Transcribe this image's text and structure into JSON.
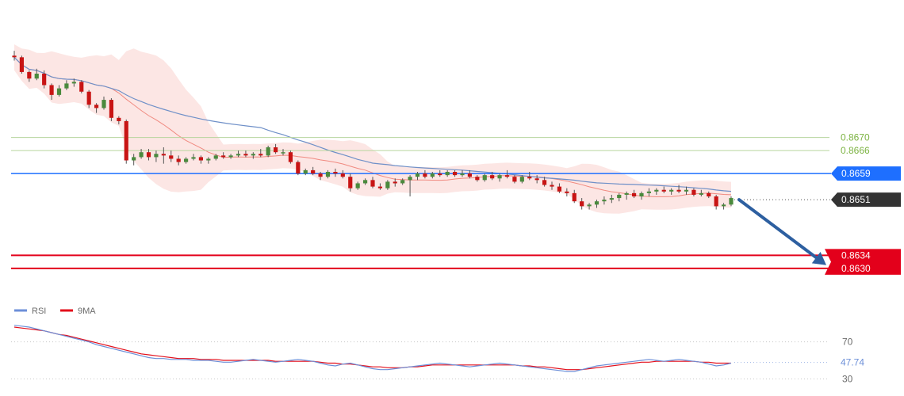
{
  "chart_data": {
    "type": "candlestick",
    "title": "",
    "price_range": [
      0.8622,
      0.8712
    ],
    "levels": [
      {
        "value": 0.867,
        "label": "0.8670",
        "kind": "resistance",
        "color": "#7cb342"
      },
      {
        "value": 0.8666,
        "label": "0.8666",
        "kind": "resistance",
        "color": "#7cb342"
      },
      {
        "value": 0.8659,
        "label": "0.8659",
        "kind": "pivot",
        "color": "#1e6fff"
      },
      {
        "value": 0.8651,
        "label": "0.8651",
        "kind": "current",
        "color": "#333333"
      },
      {
        "value": 0.8634,
        "label": "0.8634",
        "kind": "support",
        "color": "#e3001b"
      },
      {
        "value": 0.863,
        "label": "0.8630",
        "kind": "support",
        "color": "#e3001b"
      }
    ],
    "forecast_arrow": {
      "direction": "down",
      "from_price": 0.8651,
      "to_price": 0.8631,
      "color": "#2d5fa0"
    },
    "candles": [
      [
        0.8695,
        0.86965,
        0.86935,
        0.86945
      ],
      [
        0.86945,
        0.8695,
        0.86895,
        0.869
      ],
      [
        0.869,
        0.86905,
        0.8687,
        0.8688
      ],
      [
        0.8688,
        0.8691,
        0.86875,
        0.86895
      ],
      [
        0.86895,
        0.86905,
        0.8685,
        0.8686
      ],
      [
        0.8686,
        0.86865,
        0.86815,
        0.8683
      ],
      [
        0.8683,
        0.8686,
        0.86825,
        0.8685
      ],
      [
        0.8685,
        0.86875,
        0.86845,
        0.86865
      ],
      [
        0.86865,
        0.8688,
        0.86855,
        0.8687
      ],
      [
        0.8687,
        0.86875,
        0.86835,
        0.8684
      ],
      [
        0.8684,
        0.86845,
        0.8679,
        0.868
      ],
      [
        0.868,
        0.86805,
        0.86775,
        0.8679
      ],
      [
        0.8679,
        0.86825,
        0.86785,
        0.86815
      ],
      [
        0.86815,
        0.8682,
        0.8675,
        0.8676
      ],
      [
        0.8676,
        0.86765,
        0.8674,
        0.8675
      ],
      [
        0.8675,
        0.86755,
        0.8662,
        0.8663
      ],
      [
        0.8663,
        0.8665,
        0.86615,
        0.8664
      ],
      [
        0.8664,
        0.86665,
        0.86635,
        0.86655
      ],
      [
        0.86655,
        0.86665,
        0.8663,
        0.8664
      ],
      [
        0.8664,
        0.8666,
        0.86625,
        0.8665
      ],
      [
        0.8665,
        0.8667,
        0.8662,
        0.86645
      ],
      [
        0.86645,
        0.8666,
        0.86625,
        0.86635
      ],
      [
        0.86635,
        0.86645,
        0.86615,
        0.86625
      ],
      [
        0.86625,
        0.8664,
        0.8662,
        0.86635
      ],
      [
        0.86635,
        0.8665,
        0.8663,
        0.8664
      ],
      [
        0.8664,
        0.86645,
        0.8662,
        0.8663
      ],
      [
        0.8663,
        0.8664,
        0.8662,
        0.86635
      ],
      [
        0.86635,
        0.8665,
        0.8663,
        0.86645
      ],
      [
        0.86645,
        0.86655,
        0.86635,
        0.8664
      ],
      [
        0.8664,
        0.8665,
        0.86635,
        0.86645
      ],
      [
        0.86645,
        0.8666,
        0.8664,
        0.8665
      ],
      [
        0.8665,
        0.8666,
        0.8664,
        0.86645
      ],
      [
        0.86645,
        0.86655,
        0.86635,
        0.8665
      ],
      [
        0.8665,
        0.86665,
        0.8664,
        0.86645
      ],
      [
        0.86645,
        0.86675,
        0.8664,
        0.8667
      ],
      [
        0.8667,
        0.8668,
        0.8665,
        0.86655
      ],
      [
        0.86655,
        0.86665,
        0.86645,
        0.86655
      ],
      [
        0.86655,
        0.8666,
        0.8662,
        0.86625
      ],
      [
        0.86625,
        0.8663,
        0.86585,
        0.8659
      ],
      [
        0.8659,
        0.86605,
        0.86585,
        0.866
      ],
      [
        0.866,
        0.8661,
        0.86585,
        0.8659
      ],
      [
        0.8659,
        0.86595,
        0.8657,
        0.8658
      ],
      [
        0.8658,
        0.866,
        0.86575,
        0.86595
      ],
      [
        0.86595,
        0.86605,
        0.8658,
        0.8659
      ],
      [
        0.8659,
        0.866,
        0.86575,
        0.8658
      ],
      [
        0.8658,
        0.8659,
        0.86535,
        0.86545
      ],
      [
        0.86545,
        0.86565,
        0.8654,
        0.8656
      ],
      [
        0.8656,
        0.86575,
        0.86555,
        0.8657
      ],
      [
        0.8657,
        0.8658,
        0.86545,
        0.8655
      ],
      [
        0.8655,
        0.8656,
        0.8654,
        0.86545
      ],
      [
        0.86545,
        0.8657,
        0.8654,
        0.86565
      ],
      [
        0.86565,
        0.86575,
        0.8655,
        0.8656
      ],
      [
        0.8656,
        0.86575,
        0.86555,
        0.8657
      ],
      [
        0.8657,
        0.86585,
        0.8652,
        0.8658
      ],
      [
        0.8658,
        0.86595,
        0.8657,
        0.8659
      ],
      [
        0.8659,
        0.866,
        0.86575,
        0.8658
      ],
      [
        0.8658,
        0.86595,
        0.86575,
        0.8659
      ],
      [
        0.8659,
        0.866,
        0.8658,
        0.86585
      ],
      [
        0.86585,
        0.866,
        0.8658,
        0.86595
      ],
      [
        0.86595,
        0.866,
        0.8658,
        0.86585
      ],
      [
        0.86585,
        0.866,
        0.8658,
        0.8659
      ],
      [
        0.8659,
        0.866,
        0.86575,
        0.8658
      ],
      [
        0.8658,
        0.86585,
        0.86565,
        0.8657
      ],
      [
        0.8657,
        0.8659,
        0.86565,
        0.86585
      ],
      [
        0.86585,
        0.86595,
        0.8657,
        0.86575
      ],
      [
        0.86575,
        0.8659,
        0.86565,
        0.86585
      ],
      [
        0.86585,
        0.866,
        0.86575,
        0.8658
      ],
      [
        0.8658,
        0.86585,
        0.8656,
        0.86565
      ],
      [
        0.86565,
        0.86585,
        0.8656,
        0.8658
      ],
      [
        0.8658,
        0.86595,
        0.8657,
        0.86575
      ],
      [
        0.86575,
        0.86585,
        0.8656,
        0.8657
      ],
      [
        0.8657,
        0.8658,
        0.8655,
        0.86555
      ],
      [
        0.86555,
        0.86565,
        0.8654,
        0.8655
      ],
      [
        0.8655,
        0.8656,
        0.8653,
        0.86535
      ],
      [
        0.86535,
        0.86545,
        0.8652,
        0.8653
      ],
      [
        0.8653,
        0.8654,
        0.865,
        0.86505
      ],
      [
        0.86505,
        0.86515,
        0.8648,
        0.8649
      ],
      [
        0.8649,
        0.865,
        0.8648,
        0.86495
      ],
      [
        0.86495,
        0.8651,
        0.86485,
        0.86505
      ],
      [
        0.86505,
        0.8652,
        0.86495,
        0.8651
      ],
      [
        0.8651,
        0.86525,
        0.865,
        0.86515
      ],
      [
        0.86515,
        0.8653,
        0.86505,
        0.86525
      ],
      [
        0.86525,
        0.86535,
        0.8651,
        0.8653
      ],
      [
        0.8653,
        0.8654,
        0.86515,
        0.8652
      ],
      [
        0.8652,
        0.86535,
        0.8651,
        0.8653
      ],
      [
        0.8653,
        0.86545,
        0.8652,
        0.86535
      ],
      [
        0.86535,
        0.86545,
        0.86525,
        0.8654
      ],
      [
        0.8654,
        0.8655,
        0.8653,
        0.86535
      ],
      [
        0.86535,
        0.86545,
        0.86525,
        0.8654
      ],
      [
        0.8654,
        0.86555,
        0.8653,
        0.86535
      ],
      [
        0.86535,
        0.8655,
        0.86525,
        0.8654
      ],
      [
        0.8654,
        0.86545,
        0.8652,
        0.86525
      ],
      [
        0.86525,
        0.8654,
        0.8652,
        0.8653
      ],
      [
        0.8653,
        0.86535,
        0.86515,
        0.8652
      ],
      [
        0.8652,
        0.86525,
        0.8648,
        0.8649
      ],
      [
        0.8649,
        0.865,
        0.8648,
        0.86495
      ],
      [
        0.86495,
        0.8652,
        0.8649,
        0.86515
      ]
    ],
    "indicators": {
      "bollinger_band_color": "#f5b7b1",
      "moving_average_color": "#f08a80",
      "long_ma_color": "#6f90c8"
    },
    "rsi": {
      "legend": [
        {
          "name": "RSI",
          "color": "#6c8fd8"
        },
        {
          "name": "9MA",
          "color": "#e30f1b"
        }
      ],
      "levels": [
        {
          "value": 70,
          "label": "70"
        },
        {
          "value": 30,
          "label": "30"
        }
      ],
      "current_value": 47.74,
      "current_label": "47.74",
      "range": [
        20,
        80
      ],
      "values": [
        88,
        87,
        86,
        84,
        82,
        80,
        78,
        76,
        74,
        72,
        70,
        67,
        65,
        63,
        61,
        59,
        57,
        55,
        53,
        52,
        52,
        51,
        51,
        51,
        50,
        50,
        50,
        49,
        48,
        48,
        49,
        50,
        51,
        50,
        49,
        48,
        49,
        50,
        51,
        50,
        49,
        47,
        45,
        44,
        46,
        47,
        45,
        43,
        41,
        40,
        40,
        41,
        42,
        43,
        44,
        45,
        46,
        47,
        46,
        45,
        44,
        43,
        44,
        45,
        46,
        47,
        46,
        45,
        44,
        43,
        42,
        41,
        40,
        39,
        38,
        38,
        40,
        42,
        44,
        45,
        46,
        47,
        48,
        49,
        50,
        51,
        50,
        49,
        50,
        51,
        50,
        49,
        48,
        46,
        44,
        45,
        47
      ],
      "ma_values": [
        86,
        85,
        84,
        83,
        82,
        80,
        78,
        77,
        75,
        73,
        71,
        69,
        67,
        65,
        63,
        61,
        59,
        57,
        56,
        55,
        54,
        53,
        52,
        52,
        52,
        51,
        51,
        51,
        50,
        50,
        50,
        50,
        50,
        50,
        50,
        49,
        49,
        49,
        49,
        49,
        49,
        48,
        47,
        47,
        46,
        46,
        45,
        44,
        43,
        43,
        42,
        42,
        42,
        43,
        43,
        44,
        45,
        45,
        45,
        45,
        45,
        45,
        45,
        45,
        45,
        45,
        45,
        45,
        44,
        44,
        43,
        43,
        42,
        41,
        40,
        40,
        40,
        41,
        42,
        43,
        44,
        45,
        46,
        47,
        48,
        48,
        49,
        49,
        49,
        49,
        49,
        49,
        48,
        48,
        47,
        47,
        47
      ]
    }
  },
  "colors": {
    "background": "#ffffff",
    "bull": "#4a8a3d",
    "bear": "#c81414",
    "grid_dotted": "#c8c8c8"
  }
}
